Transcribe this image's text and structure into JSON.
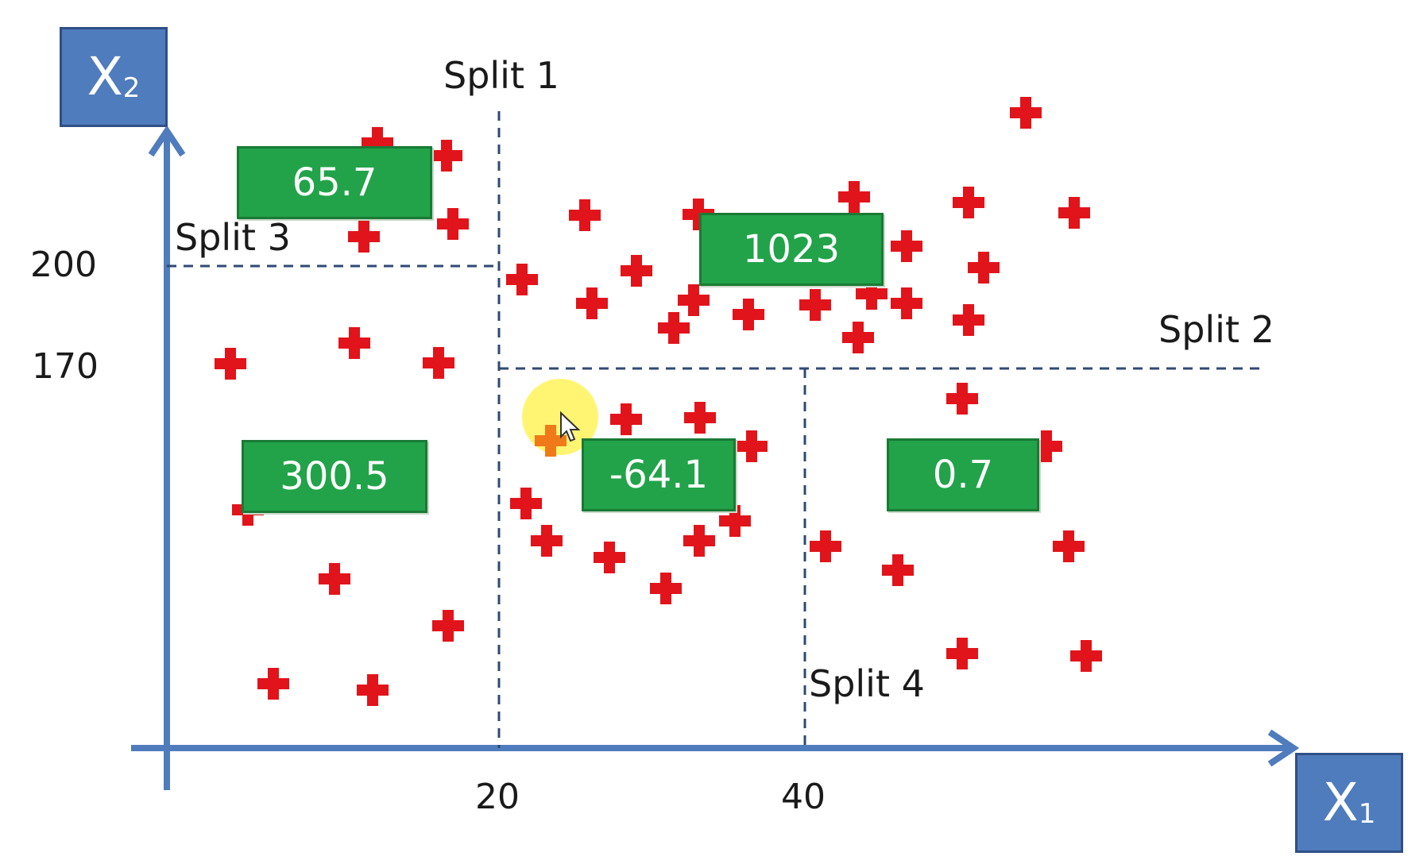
{
  "axes": {
    "x_name": "X",
    "x_sub": "1",
    "y_name": "X",
    "y_sub": "2"
  },
  "ticks": {
    "x20": "20",
    "x40": "40",
    "y200": "200",
    "y170": "170"
  },
  "splits": {
    "s1": "Split 1",
    "s2": "Split 2",
    "s3": "Split 3",
    "s4": "Split 4"
  },
  "leaves": {
    "top_left": "65.7",
    "top_right": "1023",
    "bottom_left": "300.5",
    "middle": "-64.1",
    "right": "0.7"
  },
  "colors": {
    "axis": "#4f7cbd",
    "split_line": "#2f4a73",
    "point": "#e1141b",
    "leaf": "#22a349",
    "cursor_highlight": "#fff35a"
  },
  "icons": {
    "point": "plus-icon",
    "cursor": "mouse-pointer-icon"
  }
}
